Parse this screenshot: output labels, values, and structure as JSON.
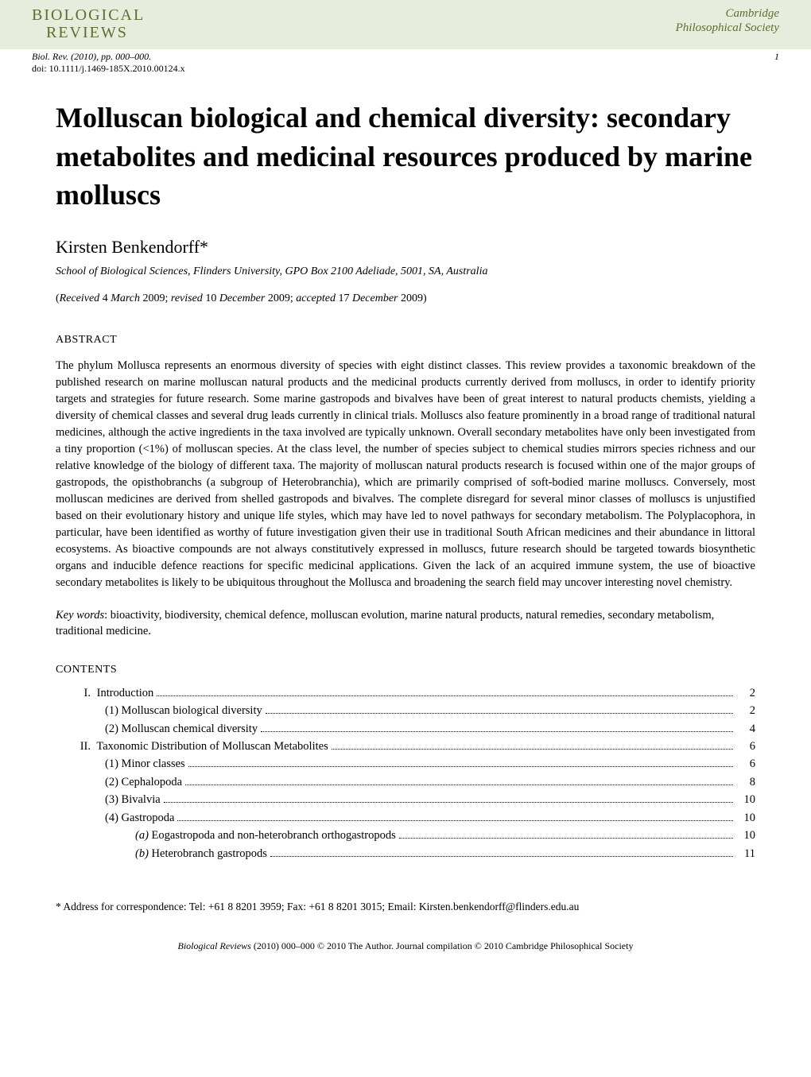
{
  "header": {
    "journal_name_line1": "BIOLOGICAL",
    "journal_name_line2": "REVIEWS",
    "society_line1": "Cambridge",
    "society_line2": "Philosophical Society",
    "citation": "Biol. Rev. (2010), pp. 000–000.",
    "doi": "doi: 10.1111/j.1469-185X.2010.00124.x",
    "page_number": "1",
    "header_bg_color": "#e8ecdc",
    "logo_color": "#5a7030"
  },
  "article": {
    "title": "Molluscan biological and chemical diversity: secondary metabolites and medicinal resources produced by marine molluscs",
    "title_fontsize": 36,
    "author": "Kirsten Benkendorff*",
    "affiliation": "School of Biological Sciences, Flinders University, GPO Box 2100 Adeliade, 5001, SA, Australia",
    "dates": {
      "received_label": "Received",
      "received_date": "4 March 2009",
      "revised_label": "revised",
      "revised_date": "10 December 2009",
      "accepted_label": "accepted",
      "accepted_date": "17 December 2009"
    }
  },
  "abstract": {
    "heading": "ABSTRACT",
    "text": "The phylum Mollusca represents an enormous diversity of species with eight distinct classes. This review provides a taxonomic breakdown of the published research on marine molluscan natural products and the medicinal products currently derived from molluscs, in order to identify priority targets and strategies for future research. Some marine gastropods and bivalves have been of great interest to natural products chemists, yielding a diversity of chemical classes and several drug leads currently in clinical trials. Molluscs also feature prominently in a broad range of traditional natural medicines, although the active ingredients in the taxa involved are typically unknown. Overall secondary metabolites have only been investigated from a tiny proportion (<1%) of molluscan species. At the class level, the number of species subject to chemical studies mirrors species richness and our relative knowledge of the biology of different taxa. The majority of molluscan natural products research is focused within one of the major groups of gastropods, the opisthobranchs (a subgroup of Heterobranchia), which are primarily comprised of soft-bodied marine molluscs. Conversely, most molluscan medicines are derived from shelled gastropods and bivalves. The complete disregard for several minor classes of molluscs is unjustified based on their evolutionary history and unique life styles, which may have led to novel pathways for secondary metabolism. The Polyplacophora, in particular, have been identified as worthy of future investigation given their use in traditional South African medicines and their abundance in littoral ecosystems. As bioactive compounds are not always constitutively expressed in molluscs, future research should be targeted towards biosynthetic organs and inducible defence reactions for specific medicinal applications. Given the lack of an acquired immune system, the use of bioactive secondary metabolites is likely to be ubiquitous throughout the Mollusca and broadening the search field may uncover interesting novel chemistry."
  },
  "keywords": {
    "label": "Key words",
    "text": ": bioactivity, biodiversity, chemical defence, molluscan evolution, marine natural products, natural remedies, secondary metabolism, traditional medicine."
  },
  "contents": {
    "heading": "CONTENTS",
    "items": [
      {
        "indent": 0,
        "marker": "I.",
        "label": "Introduction",
        "page": "2"
      },
      {
        "indent": 1,
        "marker": "(1)",
        "label": "Molluscan biological diversity",
        "page": "2"
      },
      {
        "indent": 1,
        "marker": "(2)",
        "label": "Molluscan chemical diversity",
        "page": "4"
      },
      {
        "indent": 0,
        "marker": "II.",
        "label": "Taxonomic Distribution of Molluscan Metabolites",
        "page": "6"
      },
      {
        "indent": 1,
        "marker": "(1)",
        "label": "Minor classes",
        "page": "6"
      },
      {
        "indent": 1,
        "marker": "(2)",
        "label": "Cephalopoda",
        "page": "8"
      },
      {
        "indent": 1,
        "marker": "(3)",
        "label": "Bivalvia",
        "page": "10"
      },
      {
        "indent": 1,
        "marker": "(4)",
        "label": "Gastropoda",
        "page": "10"
      },
      {
        "indent": 2,
        "marker": "(a)",
        "marker_style": "italic",
        "label": "Eogastropoda and non-heterobranch orthogastropods",
        "page": "10"
      },
      {
        "indent": 2,
        "marker": "(b)",
        "marker_style": "italic",
        "label": "Heterobranch gastropods",
        "page": "11"
      }
    ]
  },
  "footnote": {
    "marker": "*",
    "text": "Address for correspondence: Tel: +61 8 8201 3959; Fax: +61 8 8201 3015; Email: Kirsten.benkendorff@flinders.edu.au"
  },
  "footer": {
    "journal": "Biological Reviews",
    "rest": " (2010) 000–000 © 2010 The Author. Journal compilation © 2010 Cambridge Philosophical Society"
  },
  "typography": {
    "body_font": "Georgia, Times New Roman, serif",
    "body_fontsize": 14.5,
    "heading_fontsize": 14,
    "text_color": "#000000",
    "background_color": "#ffffff"
  }
}
